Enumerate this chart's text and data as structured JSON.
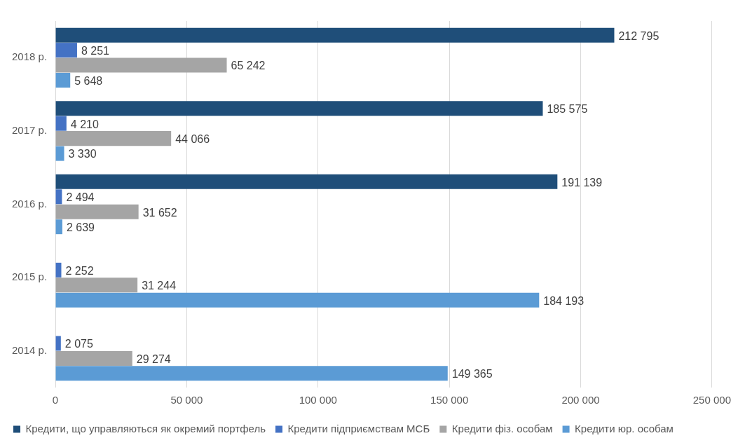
{
  "chart_data": {
    "type": "bar",
    "orientation": "horizontal",
    "categories": [
      "2018 р.",
      "2017 р.",
      "2016 р.",
      "2015 р.",
      "2014 р."
    ],
    "series": [
      {
        "name": "Кредити, що управляються як окремий портфель",
        "color": "#1f4e79",
        "values": [
          212795,
          185575,
          191139,
          null,
          null
        ],
        "value_labels": [
          "212 795",
          "185 575",
          "191 139",
          null,
          null
        ]
      },
      {
        "name": "Кредити підприємствам МСБ",
        "color": "#4472c4",
        "values": [
          8251,
          4210,
          2494,
          2252,
          2075
        ],
        "value_labels": [
          "8 251",
          "4 210",
          "2 494",
          "2 252",
          "2 075"
        ]
      },
      {
        "name": "Кредити фіз. особам",
        "color": "#a5a5a5",
        "values": [
          65242,
          44066,
          31652,
          31244,
          29274
        ],
        "value_labels": [
          "65 242",
          "44 066",
          "31 652",
          "31 244",
          "29 274"
        ]
      },
      {
        "name": "Кредити юр. особам",
        "color": "#5b9bd5",
        "values": [
          5648,
          3330,
          2639,
          184193,
          149365
        ],
        "value_labels": [
          "5 648",
          "3 330",
          "2 639",
          "184 193",
          "149 365"
        ]
      }
    ],
    "xlim": [
      0,
      250000
    ],
    "xticks": [
      0,
      {
        "value": 50000,
        "label": "50 000"
      },
      {
        "value": 100000,
        "label": "100 000"
      },
      {
        "value": 150000,
        "label": "150 000"
      },
      {
        "value": 200000,
        "label": "200 000"
      },
      {
        "value": 250000,
        "label": "250 000"
      }
    ],
    "grid": "x",
    "legend": "bottom"
  }
}
